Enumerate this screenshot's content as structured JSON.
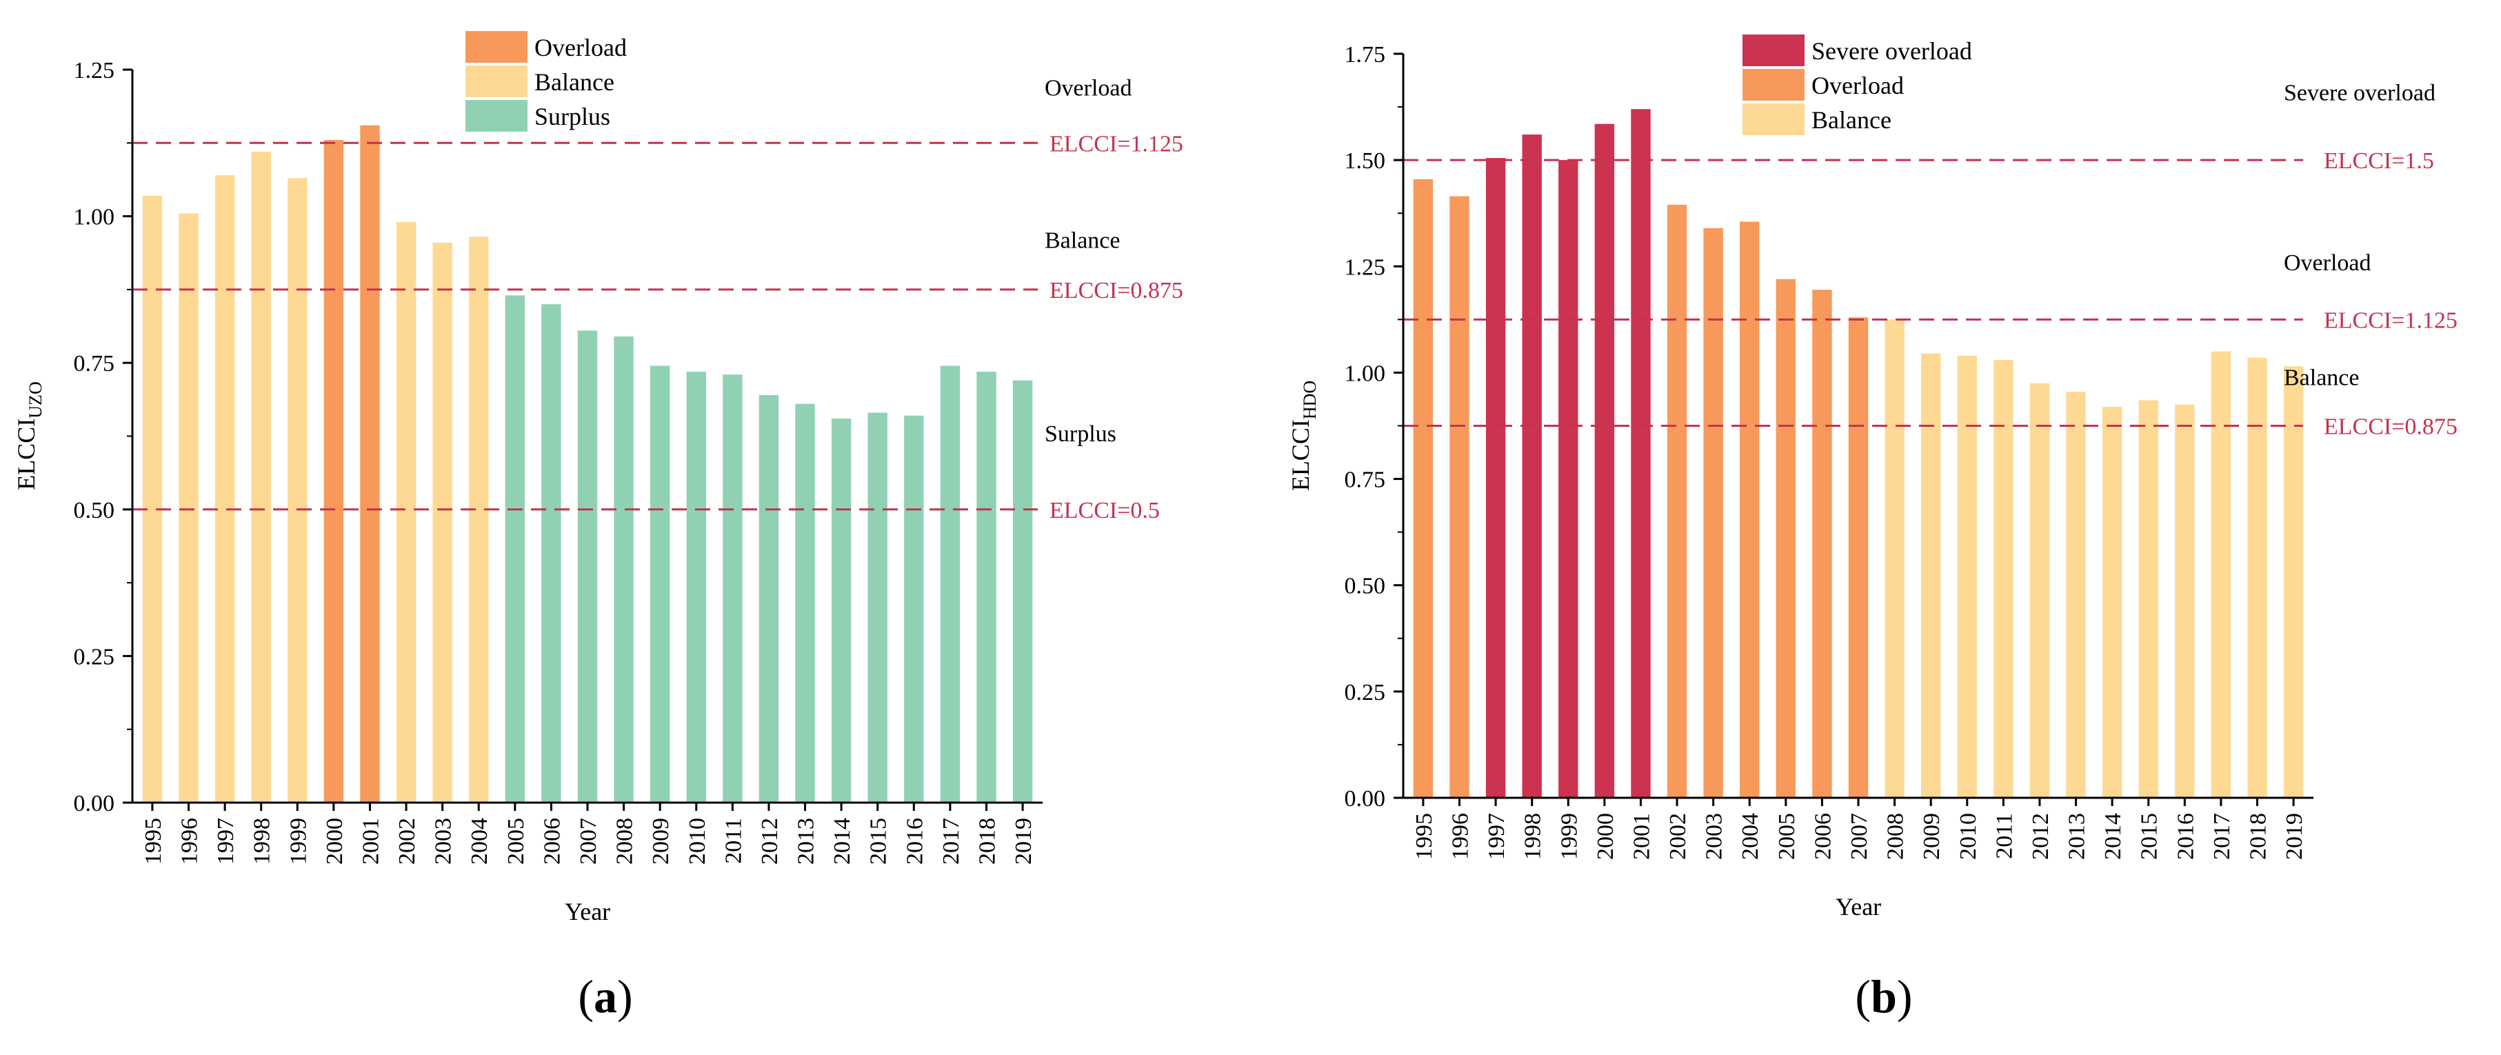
{
  "colors": {
    "severe_overload": "#cc3350",
    "overload": "#f7995a",
    "balance": "#fdd994",
    "surplus": "#90d1b4",
    "threshold": "#c5324e",
    "axis": "#000000"
  },
  "chart_data": [
    {
      "panel": "a",
      "panel_label": "(a)",
      "type": "bar",
      "title": "",
      "xlabel": "Year",
      "ylabel_main": "ELCCI",
      "ylabel_sub": "UZO",
      "ylim": [
        0,
        1.25
      ],
      "yticks": [
        0.0,
        0.25,
        0.5,
        0.75,
        1.0,
        1.25
      ],
      "ytick_labels": [
        "0.00",
        "0.25",
        "0.50",
        "0.75",
        "1.00",
        "1.25"
      ],
      "categories": [
        "1995",
        "1996",
        "1997",
        "1998",
        "1999",
        "2000",
        "2001",
        "2002",
        "2003",
        "2004",
        "2005",
        "2006",
        "2007",
        "2008",
        "2009",
        "2010",
        "2011",
        "2012",
        "2013",
        "2014",
        "2015",
        "2016",
        "2017",
        "2018",
        "2019"
      ],
      "values": [
        1.035,
        1.005,
        1.07,
        1.11,
        1.065,
        1.13,
        1.155,
        0.99,
        0.955,
        0.965,
        0.865,
        0.85,
        0.805,
        0.795,
        0.745,
        0.735,
        0.73,
        0.695,
        0.68,
        0.655,
        0.665,
        0.66,
        0.745,
        0.735,
        0.72
      ],
      "classes": [
        "balance",
        "balance",
        "balance",
        "balance",
        "balance",
        "overload",
        "overload",
        "balance",
        "balance",
        "balance",
        "surplus",
        "surplus",
        "surplus",
        "surplus",
        "surplus",
        "surplus",
        "surplus",
        "surplus",
        "surplus",
        "surplus",
        "surplus",
        "surplus",
        "surplus",
        "surplus",
        "surplus"
      ],
      "legend": [
        {
          "key": "overload",
          "label": "Overload"
        },
        {
          "key": "balance",
          "label": "Balance"
        },
        {
          "key": "surplus",
          "label": "Surplus"
        }
      ],
      "legend_position": "top-center",
      "thresholds": [
        {
          "value": 1.125,
          "label": "ELCCI=1.125"
        },
        {
          "value": 0.875,
          "label": "ELCCI=0.875"
        },
        {
          "value": 0.5,
          "label": "ELCCI=0.5"
        }
      ],
      "zone_labels": [
        {
          "text": "Overload",
          "value": 1.22
        },
        {
          "text": "Balance",
          "value": 0.96
        },
        {
          "text": "Surplus",
          "value": 0.63
        }
      ]
    },
    {
      "panel": "b",
      "panel_label": "(b)",
      "type": "bar",
      "title": "",
      "xlabel": "Year",
      "ylabel_main": "ELCCI",
      "ylabel_sub": "HDO",
      "ylim": [
        0,
        1.75
      ],
      "yticks": [
        0.0,
        0.25,
        0.5,
        0.75,
        1.0,
        1.25,
        1.5,
        1.75
      ],
      "ytick_labels": [
        "0.00",
        "0.25",
        "0.50",
        "0.75",
        "1.00",
        "1.25",
        "1.50",
        "1.75"
      ],
      "categories": [
        "1995",
        "1996",
        "1997",
        "1998",
        "1999",
        "2000",
        "2001",
        "2002",
        "2003",
        "2004",
        "2005",
        "2006",
        "2007",
        "2008",
        "2009",
        "2010",
        "2011",
        "2012",
        "2013",
        "2014",
        "2015",
        "2016",
        "2017",
        "2018",
        "2019"
      ],
      "values": [
        1.455,
        1.415,
        1.505,
        1.56,
        1.5,
        1.585,
        1.62,
        1.395,
        1.34,
        1.355,
        1.22,
        1.195,
        1.13,
        1.125,
        1.045,
        1.04,
        1.03,
        0.975,
        0.955,
        0.92,
        0.935,
        0.925,
        1.05,
        1.035,
        1.015
      ],
      "classes": [
        "overload",
        "overload",
        "severe_overload",
        "severe_overload",
        "severe_overload",
        "severe_overload",
        "severe_overload",
        "overload",
        "overload",
        "overload",
        "overload",
        "overload",
        "overload",
        "balance",
        "balance",
        "balance",
        "balance",
        "balance",
        "balance",
        "balance",
        "balance",
        "balance",
        "balance",
        "balance",
        "balance"
      ],
      "legend": [
        {
          "key": "severe_overload",
          "label": "Severe overload"
        },
        {
          "key": "overload",
          "label": "Overload"
        },
        {
          "key": "balance",
          "label": "Balance"
        }
      ],
      "legend_position": "top-center",
      "thresholds": [
        {
          "value": 1.5,
          "label": "ELCCI=1.5"
        },
        {
          "value": 1.125,
          "label": "ELCCI=1.125"
        },
        {
          "value": 0.875,
          "label": "ELCCI=0.875"
        }
      ],
      "zone_labels": [
        {
          "text": "Severe overload",
          "value": 1.66
        },
        {
          "text": "Overload",
          "value": 1.26
        },
        {
          "text": "Balance",
          "value": 0.99
        }
      ]
    }
  ]
}
